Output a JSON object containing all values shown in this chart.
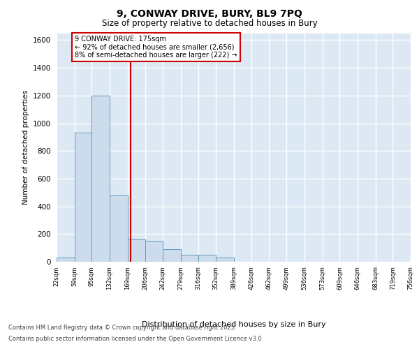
{
  "title_line1": "9, CONWAY DRIVE, BURY, BL9 7PQ",
  "title_line2": "Size of property relative to detached houses in Bury",
  "xlabel": "Distribution of detached houses by size in Bury",
  "ylabel": "Number of detached properties",
  "bar_color": "#ccdcec",
  "bar_edge_color": "#6699bb",
  "background_color": "#dce8f3",
  "grid_color": "#ffffff",
  "annotation_box_color": "#cc0000",
  "vline_color": "#cc0000",
  "vline_x": 175,
  "annotation_text": "9 CONWAY DRIVE: 175sqm\n← 92% of detached houses are smaller (2,656)\n8% of semi-detached houses are larger (222) →",
  "footer_line1": "Contains HM Land Registry data © Crown copyright and database right 2025.",
  "footer_line2": "Contains public sector information licensed under the Open Government Licence v3.0.",
  "bin_edges": [
    22,
    59,
    95,
    132,
    169,
    206,
    242,
    279,
    316,
    352,
    389,
    426,
    462,
    499,
    536,
    573,
    609,
    646,
    683,
    719,
    756
  ],
  "bar_heights": [
    30,
    930,
    1200,
    480,
    160,
    150,
    90,
    50,
    50,
    30,
    0,
    0,
    0,
    0,
    0,
    0,
    0,
    0,
    0,
    0
  ],
  "ylim": [
    0,
    1650
  ],
  "yticks": [
    0,
    200,
    400,
    600,
    800,
    1000,
    1200,
    1400,
    1600
  ]
}
